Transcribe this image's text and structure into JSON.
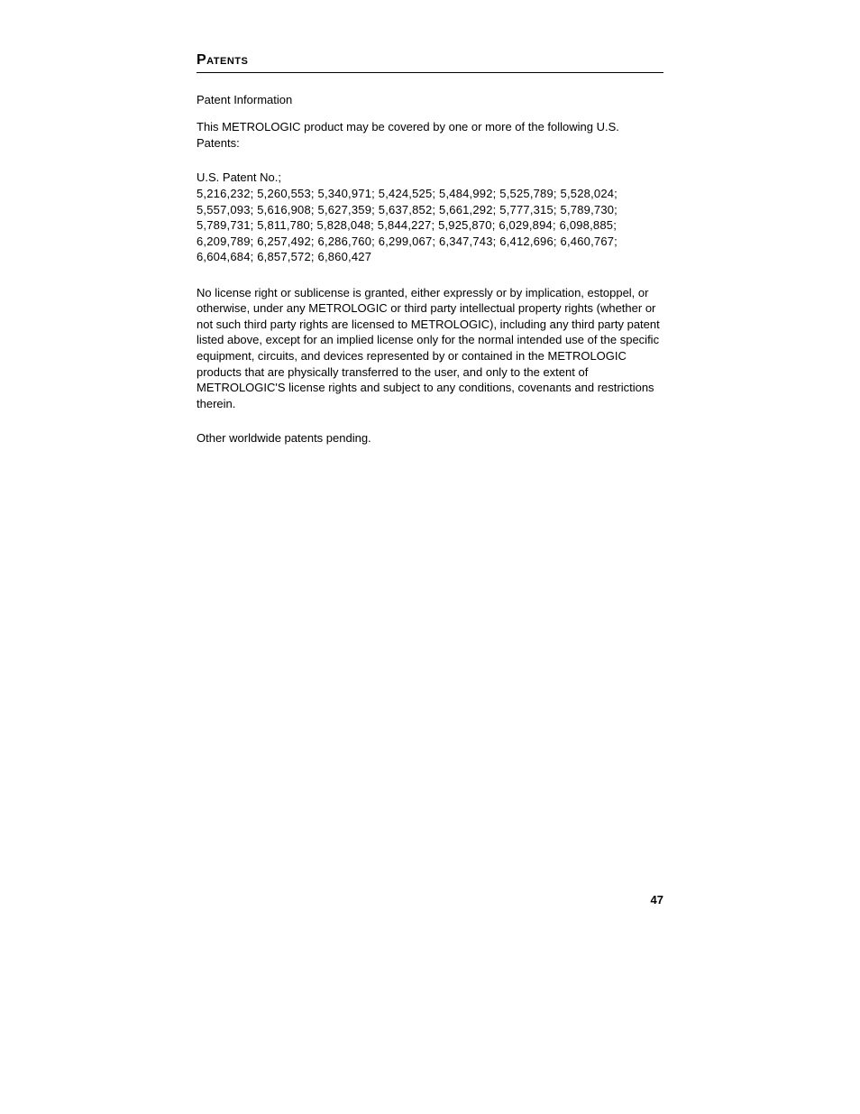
{
  "section_title": "Patents",
  "subtitle": "Patent Information",
  "intro_text": "This METROLOGIC product may be covered by one or more of the following U.S. Patents:",
  "patent_label": "U.S. Patent No.;",
  "patent_list": "5,216,232;  5,260,553;  5,340,971;  5,424,525;  5,484,992;  5,525,789;  5,528,024;  5,557,093;  5,616,908;  5,627,359;  5,637,852;  5,661,292;  5,777,315;  5,789,730;  5,789,731;  5,811,780;  5,828,048;  5,844,227;  5,925,870;  6,029,894;  6,098,885;  6,209,789;  6,257,492;  6,286,760;  6,299,067;  6,347,743;  6,412,696;  6,460,767;  6,604,684;  6,857,572;  6,860,427",
  "license_text": "No license right or sublicense is granted, either expressly or by implication, estoppel, or otherwise, under any METROLOGIC or third party intellectual property rights (whether or not such third party rights are licensed to METROLOGIC), including any third party patent listed above, except for an implied license only for the normal intended use of the specific equipment, circuits, and devices represented by or contained in the METROLOGIC products that are physically transferred to the user, and only to the extent of METROLOGIC'S license rights and subject to any conditions, covenants and restrictions therein.",
  "pending_text": "Other worldwide patents pending.",
  "page_number": "47"
}
